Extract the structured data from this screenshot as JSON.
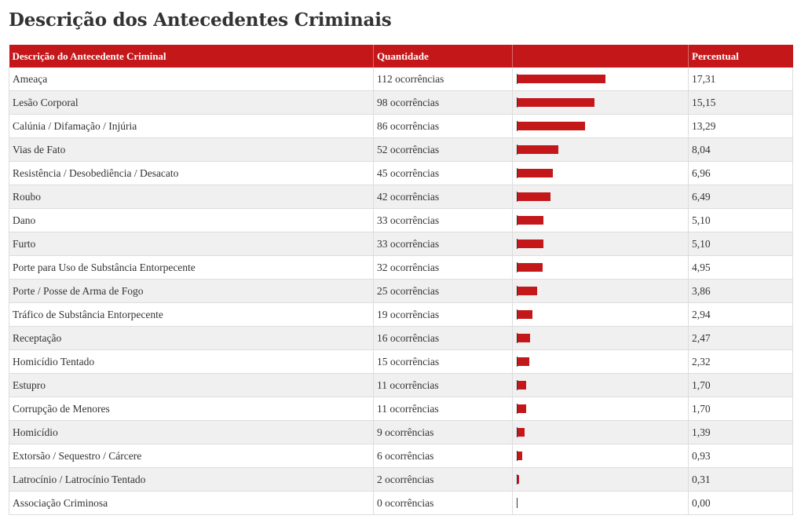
{
  "title": "Descrição dos Antecedentes Criminais",
  "colors": {
    "header_bg": "#c4171a",
    "bar": "#c4171a",
    "alt_row": "#f0f0f0"
  },
  "chart_data": {
    "type": "table",
    "columns": [
      "Descrição do Antecedente Criminal",
      "Quantidade",
      "",
      "Percentual"
    ],
    "rows": [
      {
        "label": "Ameaça",
        "quantity": "112 ocorrências",
        "percent": "17,31",
        "value": 17.31
      },
      {
        "label": "Lesão Corporal",
        "quantity": "98 ocorrências",
        "percent": "15,15",
        "value": 15.15
      },
      {
        "label": "Calúnia / Difamação / Injúria",
        "quantity": "86 ocorrências",
        "percent": "13,29",
        "value": 13.29
      },
      {
        "label": "Vias de Fato",
        "quantity": "52 ocorrências",
        "percent": "8,04",
        "value": 8.04
      },
      {
        "label": "Resistência / Desobediência / Desacato",
        "quantity": "45 ocorrências",
        "percent": "6,96",
        "value": 6.96
      },
      {
        "label": "Roubo",
        "quantity": "42 ocorrências",
        "percent": "6,49",
        "value": 6.49
      },
      {
        "label": "Dano",
        "quantity": "33 ocorrências",
        "percent": "5,10",
        "value": 5.1
      },
      {
        "label": "Furto",
        "quantity": "33 ocorrências",
        "percent": "5,10",
        "value": 5.1
      },
      {
        "label": "Porte para Uso de Substância Entorpecente",
        "quantity": "32 ocorrências",
        "percent": "4,95",
        "value": 4.95
      },
      {
        "label": "Porte / Posse de Arma de Fogo",
        "quantity": "25 ocorrências",
        "percent": "3,86",
        "value": 3.86
      },
      {
        "label": "Tráfico de Substância Entorpecente",
        "quantity": "19 ocorrências",
        "percent": "2,94",
        "value": 2.94
      },
      {
        "label": "Receptação",
        "quantity": "16 ocorrências",
        "percent": "2,47",
        "value": 2.47
      },
      {
        "label": "Homicídio Tentado",
        "quantity": "15 ocorrências",
        "percent": "2,32",
        "value": 2.32
      },
      {
        "label": "Estupro",
        "quantity": "11 ocorrências",
        "percent": "1,70",
        "value": 1.7
      },
      {
        "label": "Corrupção de Menores",
        "quantity": "11 ocorrências",
        "percent": "1,70",
        "value": 1.7
      },
      {
        "label": "Homicídio",
        "quantity": "9 ocorrências",
        "percent": "1,39",
        "value": 1.39
      },
      {
        "label": "Extorsão / Sequestro / Cárcere",
        "quantity": "6 ocorrências",
        "percent": "0,93",
        "value": 0.93
      },
      {
        "label": "Latrocínio / Latrocínio Tentado",
        "quantity": "2 ocorrências",
        "percent": "0,31",
        "value": 0.31
      },
      {
        "label": "Associação Criminosa",
        "quantity": "0 ocorrências",
        "percent": "0,00",
        "value": 0.0
      }
    ]
  }
}
